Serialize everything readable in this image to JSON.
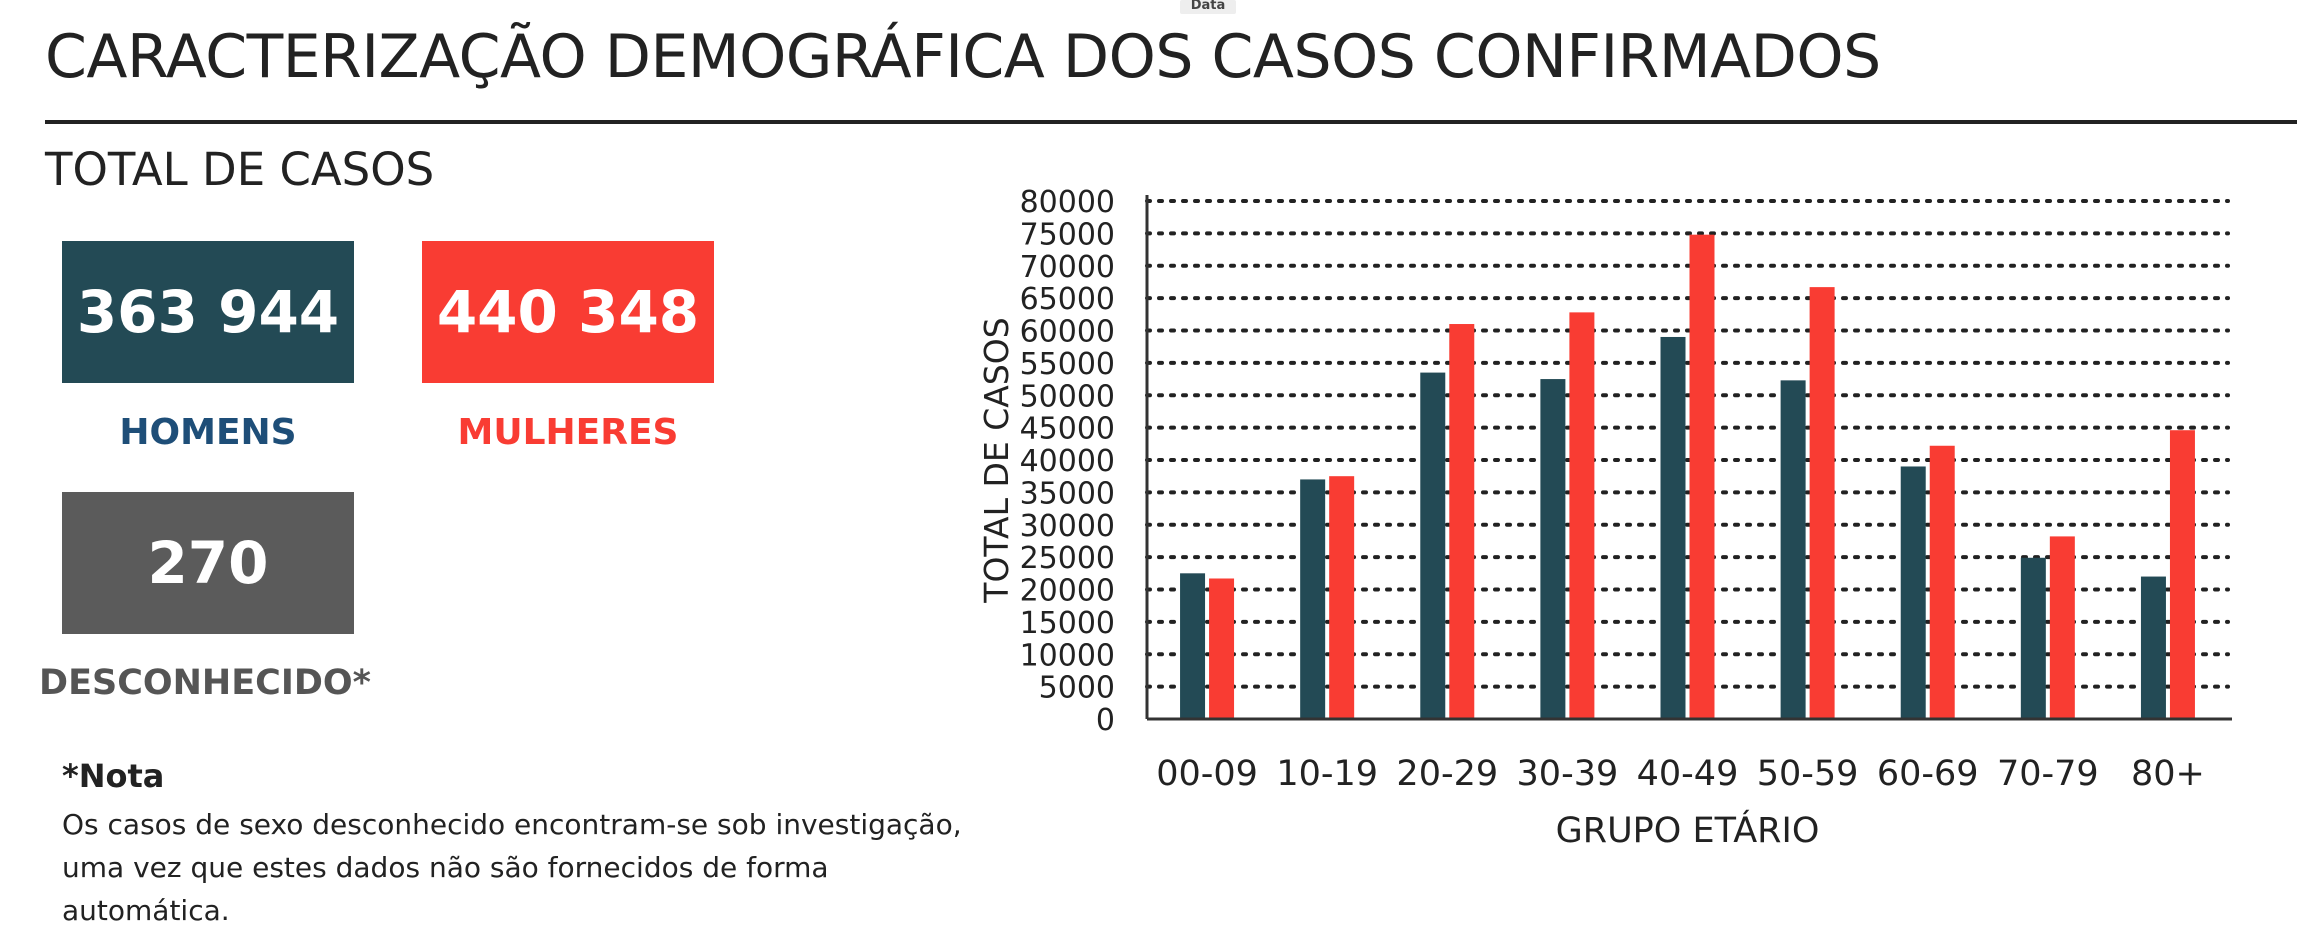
{
  "top_tag": "Data",
  "header": {
    "title": "CARACTERIZAÇÃO DEMOGRÁFICA DOS CASOS CONFIRMADOS"
  },
  "summary": {
    "subtitle": "TOTAL DE CASOS",
    "men": {
      "value": "363 944",
      "label": "HOMENS"
    },
    "women": {
      "value": "440 348",
      "label": "MULHERES"
    },
    "unknown": {
      "value": "270",
      "label": "DESCONHECIDO*"
    }
  },
  "note": {
    "title": "*Nota",
    "line1": "Os casos de sexo desconhecido encontram-se sob investigação,",
    "line2": "uma vez que estes dados não são fornecidos de forma automática."
  },
  "colors": {
    "men": "#234a55",
    "women": "#f93c33",
    "unknown": "#5b5b5b",
    "men_label": "#1e4e78"
  },
  "chart_data": {
    "type": "bar",
    "categories": [
      "00-09",
      "10-19",
      "20-29",
      "30-39",
      "40-49",
      "50-59",
      "60-69",
      "70-79",
      "80+"
    ],
    "series": [
      {
        "values": [
          22500,
          37000,
          53500,
          52500,
          59000,
          52300,
          39000,
          24900,
          22000
        ],
        "color": "#234a55"
      },
      {
        "values": [
          21700,
          37500,
          61000,
          62800,
          74800,
          66700,
          42200,
          28200,
          44600
        ],
        "color": "#f93c33"
      }
    ],
    "xlabel": "GRUPO ETÁRIO",
    "ylabel": "TOTAL DE CASOS",
    "ylim": [
      0,
      80000
    ],
    "yticks": [
      0,
      5000,
      10000,
      15000,
      20000,
      25000,
      30000,
      35000,
      40000,
      45000,
      50000,
      55000,
      60000,
      65000,
      70000,
      75000,
      80000
    ],
    "grid": true
  }
}
